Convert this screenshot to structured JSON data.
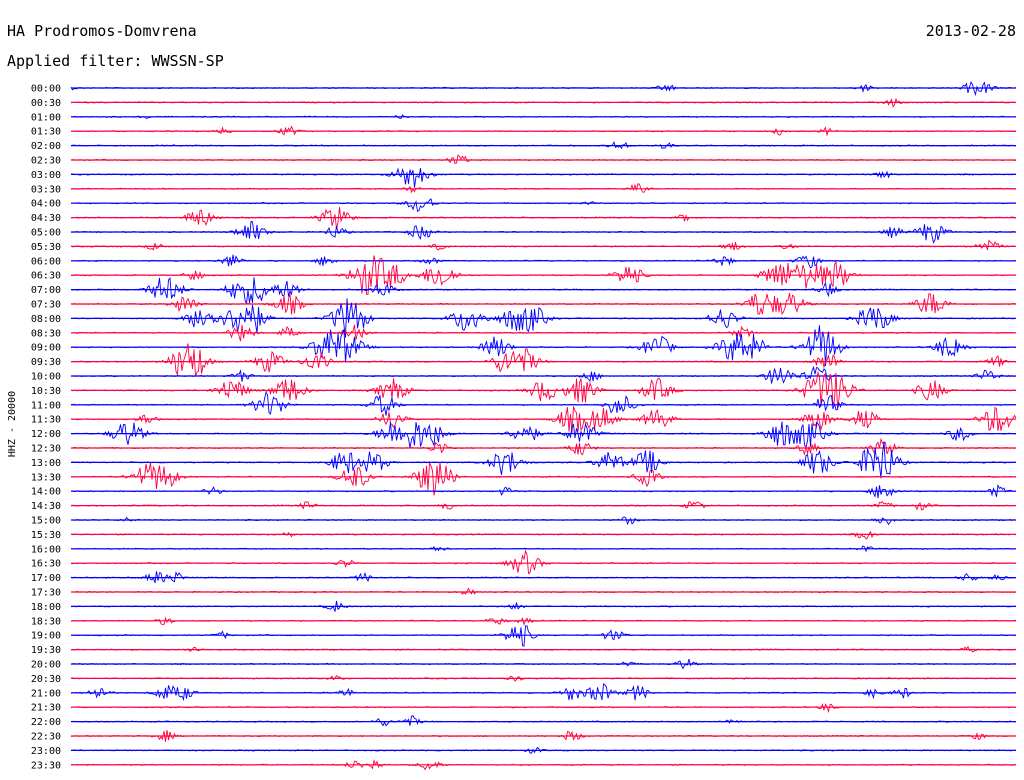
{
  "header": {
    "station": "HA Prodromos-Domvrena",
    "filter": "Applied filter: WWSSN-SP",
    "date": "2013-02-28"
  },
  "chart_data": {
    "type": "line",
    "title": "HA Prodromos-Domvrena",
    "subtitle": "Applied filter: WWSSN-SP",
    "date": "2013-02-28",
    "ylabel": "HHZ - 20000",
    "colors": [
      "#0000ff",
      "#ff0040"
    ],
    "rows": [
      {
        "label": "00:00",
        "events": [
          [
            0,
            0.25
          ],
          [
            0.63,
            0.8
          ],
          [
            0.84,
            0.6
          ],
          [
            0.955,
            1.2
          ],
          [
            0.97,
            0.8
          ]
        ]
      },
      {
        "label": "00:30",
        "events": [
          [
            0.87,
            0.7
          ]
        ]
      },
      {
        "label": "01:00",
        "events": [
          [
            0.08,
            0.3
          ],
          [
            0.35,
            0.25
          ]
        ]
      },
      {
        "label": "01:30",
        "events": [
          [
            0.16,
            0.6
          ],
          [
            0.23,
            0.9
          ],
          [
            0.75,
            0.6
          ],
          [
            0.8,
            0.6
          ]
        ]
      },
      {
        "label": "02:00",
        "events": [
          [
            0.58,
            0.9
          ],
          [
            0.63,
            0.6
          ]
        ]
      },
      {
        "label": "02:30",
        "events": [
          [
            0.41,
            1.0
          ]
        ]
      },
      {
        "label": "03:00",
        "events": [
          [
            0.36,
            2.5
          ],
          [
            0.86,
            0.7
          ]
        ]
      },
      {
        "label": "03:30",
        "events": [
          [
            0.36,
            0.6
          ],
          [
            0.6,
            1.0
          ]
        ]
      },
      {
        "label": "04:00",
        "events": [
          [
            0.37,
            1.8
          ],
          [
            0.55,
            0.3
          ]
        ]
      },
      {
        "label": "04:30",
        "events": [
          [
            0.13,
            1.0
          ],
          [
            0.14,
            1.3
          ],
          [
            0.28,
            2.2
          ],
          [
            0.65,
            0.7
          ]
        ]
      },
      {
        "label": "05:00",
        "events": [
          [
            0.19,
            2.0
          ],
          [
            0.28,
            1.2
          ],
          [
            0.37,
            1.4
          ],
          [
            0.87,
            1.0
          ],
          [
            0.91,
            2.0
          ]
        ]
      },
      {
        "label": "05:30",
        "events": [
          [
            0.09,
            0.8
          ],
          [
            0.39,
            0.6
          ],
          [
            0.7,
            0.9
          ],
          [
            0.76,
            0.6
          ],
          [
            0.97,
            1.4
          ]
        ]
      },
      {
        "label": "06:00",
        "events": [
          [
            0.17,
            1.2
          ],
          [
            0.27,
            1.0
          ],
          [
            0.38,
            0.8
          ],
          [
            0.69,
            1.0
          ],
          [
            0.78,
            1.4
          ]
        ]
      },
      {
        "label": "06:30",
        "events": [
          [
            0.13,
            1.0
          ],
          [
            0.31,
            2.4
          ],
          [
            0.32,
            2.0
          ],
          [
            0.34,
            2.2
          ],
          [
            0.39,
            2.5
          ],
          [
            0.59,
            2.0
          ],
          [
            0.75,
            2.6
          ],
          [
            0.78,
            2.4
          ],
          [
            0.81,
            2.4
          ]
        ]
      },
      {
        "label": "07:00",
        "events": [
          [
            0.1,
            2.5
          ],
          [
            0.18,
            2.2
          ],
          [
            0.2,
            2.0
          ],
          [
            0.23,
            1.6
          ],
          [
            0.33,
            1.4
          ],
          [
            0.8,
            1.2
          ]
        ]
      },
      {
        "label": "07:30",
        "events": [
          [
            0.12,
            1.6
          ],
          [
            0.23,
            2.0
          ],
          [
            0.73,
            2.4
          ],
          [
            0.76,
            2.2
          ],
          [
            0.91,
            2.2
          ]
        ]
      },
      {
        "label": "08:00",
        "events": [
          [
            0.14,
            2.4
          ],
          [
            0.18,
            2.6
          ],
          [
            0.19,
            2.2
          ],
          [
            0.29,
            2.5
          ],
          [
            0.3,
            2.0
          ],
          [
            0.42,
            2.6
          ],
          [
            0.47,
            2.2
          ],
          [
            0.49,
            2.0
          ],
          [
            0.69,
            2.0
          ],
          [
            0.85,
            2.6
          ]
        ]
      },
      {
        "label": "08:30",
        "events": [
          [
            0.18,
            1.6
          ],
          [
            0.23,
            1.0
          ],
          [
            0.3,
            1.4
          ],
          [
            0.71,
            1.0
          ]
        ]
      },
      {
        "label": "09:00",
        "events": [
          [
            0.27,
            2.4
          ],
          [
            0.29,
            2.8
          ],
          [
            0.45,
            2.0
          ],
          [
            0.62,
            2.2
          ],
          [
            0.7,
            2.4
          ],
          [
            0.72,
            2.2
          ],
          [
            0.79,
            2.6
          ],
          [
            0.8,
            2.0
          ],
          [
            0.93,
            2.2
          ]
        ]
      },
      {
        "label": "09:30",
        "events": [
          [
            0.12,
            2.4
          ],
          [
            0.13,
            2.2
          ],
          [
            0.21,
            2.0
          ],
          [
            0.26,
            1.8
          ],
          [
            0.46,
            2.0
          ],
          [
            0.48,
            2.2
          ],
          [
            0.8,
            1.6
          ],
          [
            0.98,
            1.0
          ]
        ]
      },
      {
        "label": "10:00",
        "events": [
          [
            0.18,
            1.0
          ],
          [
            0.55,
            1.0
          ],
          [
            0.75,
            2.0
          ],
          [
            0.79,
            1.8
          ],
          [
            0.97,
            1.2
          ]
        ]
      },
      {
        "label": "10:30",
        "events": [
          [
            0.17,
            2.2
          ],
          [
            0.23,
            2.4
          ],
          [
            0.34,
            2.2
          ],
          [
            0.5,
            2.0
          ],
          [
            0.54,
            2.4
          ],
          [
            0.62,
            2.2
          ],
          [
            0.79,
            2.6
          ],
          [
            0.81,
            2.8
          ],
          [
            0.91,
            2.0
          ]
        ]
      },
      {
        "label": "11:00",
        "events": [
          [
            0.21,
            2.4
          ],
          [
            0.33,
            2.0
          ],
          [
            0.58,
            2.0
          ],
          [
            0.8,
            1.8
          ]
        ]
      },
      {
        "label": "11:30",
        "events": [
          [
            0.08,
            1.0
          ],
          [
            0.34,
            1.8
          ],
          [
            0.53,
            2.4
          ],
          [
            0.56,
            2.2
          ],
          [
            0.62,
            2.0
          ],
          [
            0.79,
            2.0
          ],
          [
            0.84,
            1.8
          ],
          [
            0.98,
            2.6
          ]
        ]
      },
      {
        "label": "12:00",
        "events": [
          [
            0.06,
            2.4
          ],
          [
            0.34,
            2.2
          ],
          [
            0.36,
            2.0
          ],
          [
            0.38,
            2.4
          ],
          [
            0.48,
            2.0
          ],
          [
            0.54,
            2.2
          ],
          [
            0.75,
            2.4
          ],
          [
            0.78,
            2.6
          ],
          [
            0.94,
            1.4
          ]
        ]
      },
      {
        "label": "12:30",
        "events": [
          [
            0.39,
            1.2
          ],
          [
            0.54,
            1.4
          ],
          [
            0.78,
            1.2
          ],
          [
            0.86,
            1.6
          ]
        ]
      },
      {
        "label": "13:00",
        "events": [
          [
            0.29,
            2.2
          ],
          [
            0.32,
            2.0
          ],
          [
            0.46,
            2.4
          ],
          [
            0.57,
            2.0
          ],
          [
            0.61,
            2.2
          ],
          [
            0.79,
            2.4
          ],
          [
            0.85,
            2.6
          ],
          [
            0.86,
            2.4
          ]
        ]
      },
      {
        "label": "13:30",
        "events": [
          [
            0.08,
            2.2
          ],
          [
            0.1,
            2.0
          ],
          [
            0.3,
            2.2
          ],
          [
            0.38,
            2.4
          ],
          [
            0.39,
            2.2
          ],
          [
            0.61,
            1.6
          ]
        ]
      },
      {
        "label": "14:00",
        "events": [
          [
            0.15,
            0.8
          ],
          [
            0.46,
            0.8
          ],
          [
            0.86,
            1.6
          ],
          [
            0.98,
            1.0
          ]
        ]
      },
      {
        "label": "14:30",
        "events": [
          [
            0.25,
            0.7
          ],
          [
            0.4,
            0.7
          ],
          [
            0.66,
            1.0
          ],
          [
            0.86,
            0.8
          ],
          [
            0.9,
            0.8
          ]
        ]
      },
      {
        "label": "15:00",
        "events": [
          [
            0.06,
            0.4
          ],
          [
            0.59,
            0.8
          ],
          [
            0.86,
            1.0
          ]
        ]
      },
      {
        "label": "15:30",
        "events": [
          [
            0.23,
            0.5
          ],
          [
            0.84,
            0.9
          ]
        ]
      },
      {
        "label": "16:00",
        "events": [
          [
            0.39,
            0.5
          ],
          [
            0.84,
            0.6
          ]
        ]
      },
      {
        "label": "16:30",
        "events": [
          [
            0.29,
            0.8
          ],
          [
            0.48,
            2.2
          ]
        ]
      },
      {
        "label": "17:00",
        "events": [
          [
            0.09,
            1.2
          ],
          [
            0.11,
            1.0
          ],
          [
            0.31,
            0.8
          ],
          [
            0.95,
            0.8
          ],
          [
            0.98,
            0.6
          ]
        ]
      },
      {
        "label": "17:30",
        "events": [
          [
            0.42,
            0.6
          ]
        ]
      },
      {
        "label": "18:00",
        "events": [
          [
            0.28,
            1.0
          ],
          [
            0.47,
            0.7
          ]
        ]
      },
      {
        "label": "18:30",
        "events": [
          [
            0.1,
            0.7
          ],
          [
            0.45,
            0.8
          ],
          [
            0.48,
            0.6
          ]
        ]
      },
      {
        "label": "19:00",
        "events": [
          [
            0.16,
            0.6
          ],
          [
            0.47,
            1.6
          ],
          [
            0.48,
            1.2
          ],
          [
            0.57,
            0.8
          ],
          [
            0.58,
            0.6
          ]
        ]
      },
      {
        "label": "19:30",
        "events": [
          [
            0.13,
            0.6
          ],
          [
            0.95,
            0.5
          ]
        ]
      },
      {
        "label": "20:00",
        "events": [
          [
            0.59,
            0.6
          ],
          [
            0.65,
            1.0
          ]
        ]
      },
      {
        "label": "20:30",
        "events": [
          [
            0.28,
            0.5
          ],
          [
            0.47,
            0.5
          ]
        ]
      },
      {
        "label": "21:00",
        "events": [
          [
            0.03,
            1.2
          ],
          [
            0.1,
            1.4
          ],
          [
            0.12,
            1.2
          ],
          [
            0.29,
            0.8
          ],
          [
            0.53,
            1.4
          ],
          [
            0.56,
            1.8
          ],
          [
            0.6,
            1.4
          ],
          [
            0.85,
            0.8
          ],
          [
            0.88,
            1.0
          ]
        ]
      },
      {
        "label": "21:30",
        "events": [
          [
            0.8,
            0.8
          ]
        ]
      },
      {
        "label": "22:00",
        "events": [
          [
            0.33,
            0.8
          ],
          [
            0.36,
            1.0
          ],
          [
            0.7,
            0.6
          ]
        ]
      },
      {
        "label": "22:30",
        "events": [
          [
            0.1,
            1.0
          ],
          [
            0.53,
            1.0
          ],
          [
            0.96,
            0.6
          ]
        ]
      },
      {
        "label": "23:00",
        "events": [
          [
            0.49,
            0.6
          ]
        ]
      },
      {
        "label": "23:30",
        "events": [
          [
            0.3,
            0.8
          ],
          [
            0.32,
            1.0
          ],
          [
            0.38,
            1.2
          ]
        ]
      }
    ]
  }
}
